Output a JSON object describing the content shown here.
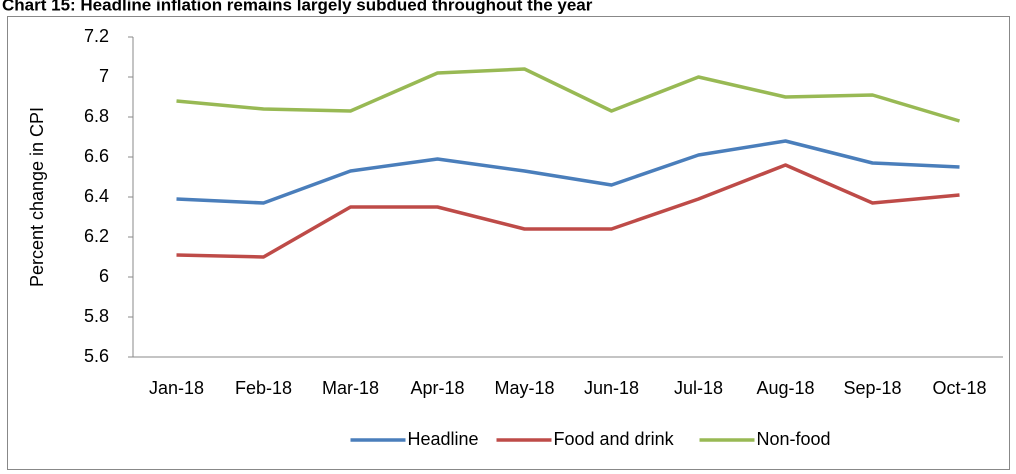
{
  "chart_data": {
    "type": "line",
    "title": "Chart 15: Headline inflation remains largely subdued throughout the year",
    "ylabel": "Percent change in CPI",
    "categories": [
      "Jan-18",
      "Feb-18",
      "Mar-18",
      "Apr-18",
      "May-18",
      "Jun-18",
      "Jul-18",
      "Aug-18",
      "Sep-18",
      "Oct-18"
    ],
    "series": [
      {
        "name": "Headline",
        "color": "#4a7ebb",
        "values": [
          6.39,
          6.37,
          6.53,
          6.59,
          6.53,
          6.46,
          6.61,
          6.68,
          6.57,
          6.55
        ]
      },
      {
        "name": "Food and drink",
        "color": "#be4b48",
        "values": [
          6.11,
          6.1,
          6.35,
          6.35,
          6.24,
          6.24,
          6.39,
          6.56,
          6.37,
          6.41
        ]
      },
      {
        "name": "Non-food",
        "color": "#98b954",
        "values": [
          6.88,
          6.84,
          6.83,
          7.02,
          7.04,
          6.83,
          7.0,
          6.9,
          6.91,
          6.78
        ]
      }
    ],
    "ylim": [
      5.6,
      7.2
    ],
    "yticks": [
      5.6,
      5.8,
      6,
      6.2,
      6.4,
      6.6,
      6.8,
      7,
      7.2
    ],
    "grid": false,
    "legend": "bottom"
  }
}
